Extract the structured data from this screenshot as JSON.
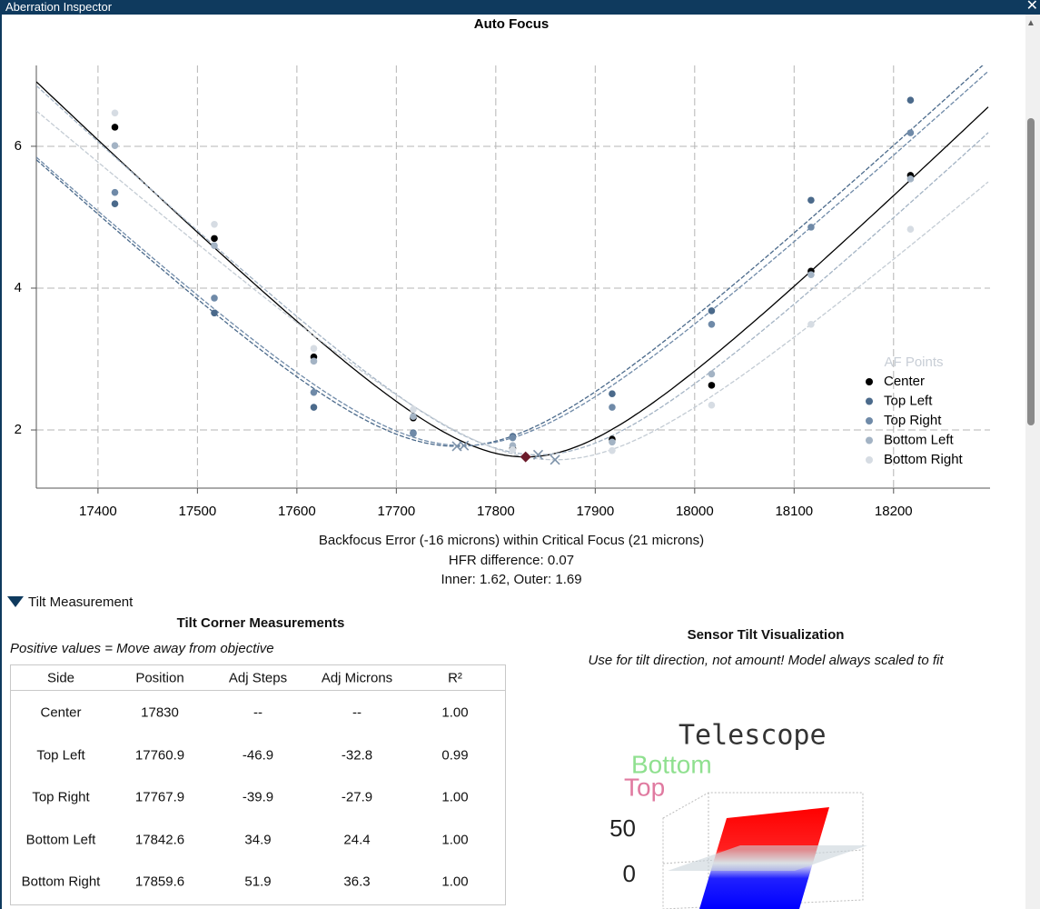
{
  "window": {
    "title": "Aberration Inspector"
  },
  "chart_data": {
    "type": "scatter",
    "title": "Auto Focus",
    "legend_title": "AF Points",
    "legend": "right",
    "x": [
      17417,
      17517,
      17617,
      17717,
      17817,
      17917,
      18017,
      18117,
      18217
    ],
    "series": [
      {
        "name": "Center",
        "color": "#000000",
        "values": [
          6.27,
          4.7,
          3.03,
          2.17,
          1.74,
          1.87,
          2.63,
          4.24,
          5.59
        ],
        "minimum": [
          17830,
          1.62
        ]
      },
      {
        "name": "Top Left",
        "color": "#4b6a8b",
        "values": [
          5.19,
          3.65,
          2.32,
          1.96,
          1.91,
          2.51,
          3.68,
          5.24,
          6.65
        ],
        "minimum": [
          17760.9,
          1.77
        ]
      },
      {
        "name": "Top Right",
        "color": "#6f8aa8",
        "values": [
          5.35,
          3.86,
          2.53,
          1.95,
          1.89,
          2.32,
          3.49,
          4.86,
          6.19
        ],
        "minimum": [
          17767.9,
          1.78
        ]
      },
      {
        "name": "Bottom Left",
        "color": "#a3b3c4",
        "values": [
          6.01,
          4.6,
          2.97,
          2.19,
          1.78,
          1.83,
          2.79,
          4.19,
          5.54
        ],
        "minimum": [
          17842.6,
          1.65
        ]
      },
      {
        "name": "Bottom Right",
        "color": "#d6dce3",
        "values": [
          6.47,
          4.9,
          3.15,
          2.29,
          1.72,
          1.71,
          2.35,
          3.49,
          4.83
        ],
        "minimum": [
          17859.6,
          1.58
        ]
      }
    ],
    "xlim": [
      17338,
      18297
    ],
    "ylim": [
      1.18,
      7.14
    ],
    "xticks": [
      17400,
      17500,
      17600,
      17700,
      17800,
      17900,
      18000,
      18100,
      18200
    ],
    "yticks": [
      2,
      4,
      6
    ],
    "grid": true
  },
  "focus_summary": [
    "Backfocus Error (-16 microns) within Critical Focus (21 microns)",
    "HFR difference: 0.07",
    "Inner: 1.62, Outer: 1.69"
  ],
  "tilt": {
    "section_title": "Tilt Measurement",
    "table_title": "Tilt Corner Measurements",
    "note": "Positive values = Move away from objective",
    "table": {
      "columns": [
        "Side",
        "Position",
        "Adj Steps",
        "Adj Microns",
        "R²"
      ],
      "rows": [
        [
          "Center",
          "17830",
          "--",
          "--",
          "1.00"
        ],
        [
          "Top Left",
          "17760.9",
          "-46.9",
          "-32.8",
          "0.99"
        ],
        [
          "Top Right",
          "17767.9",
          "-39.9",
          "-27.9",
          "1.00"
        ],
        [
          "Bottom Left",
          "17842.6",
          "34.9",
          "24.4",
          "1.00"
        ],
        [
          "Bottom Right",
          "17859.6",
          "51.9",
          "36.3",
          "1.00"
        ]
      ]
    }
  },
  "visualization": {
    "title": "Sensor Tilt Visualization",
    "note": "Use for tilt direction, not amount! Model always scaled to fit",
    "labels": [
      "Telescope",
      "Bottom",
      "Top"
    ],
    "zticks": [
      "50",
      "0"
    ]
  }
}
